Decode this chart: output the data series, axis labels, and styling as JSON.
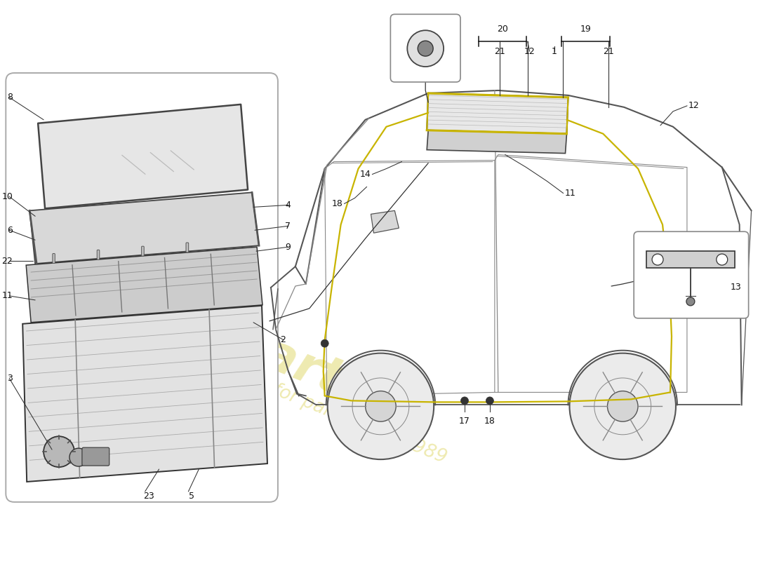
{
  "bg_color": "#ffffff",
  "lc": "#333333",
  "lc_light": "#888888",
  "lc_med": "#555555",
  "yellow": "#c8b400",
  "label_fs": 9,
  "box_edge": "#aaaaaa",
  "watermark_color": "#d4c830",
  "watermark_alpha": 0.38
}
